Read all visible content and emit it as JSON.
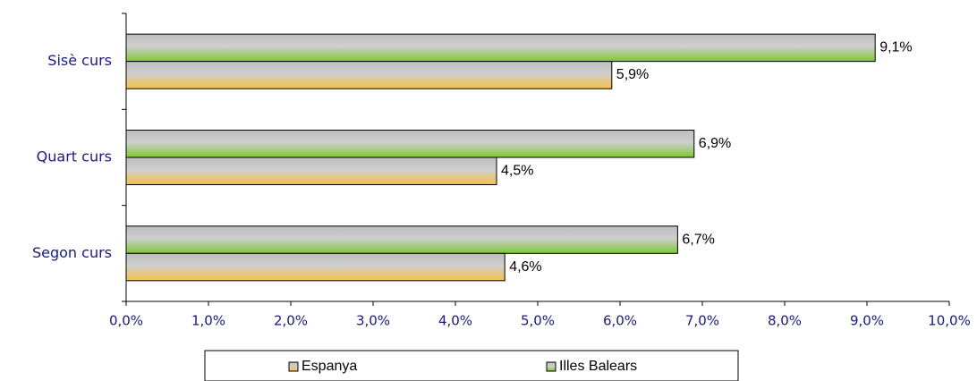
{
  "chart_data": {
    "type": "bar",
    "orientation": "horizontal",
    "categories": [
      "Sisè curs",
      "Quart curs",
      "Segon curs"
    ],
    "series": [
      {
        "name": "Espanya",
        "color": "#f5c242",
        "values": [
          5.9,
          4.5,
          4.6
        ],
        "value_labels": [
          "5,9%",
          "4,5%",
          "4,6%"
        ]
      },
      {
        "name": "Illes Balears",
        "color": "#7ec832",
        "values": [
          9.1,
          6.9,
          6.7
        ],
        "value_labels": [
          "9,1%",
          "6,9%",
          "6,7%"
        ]
      }
    ],
    "xlim": [
      0,
      10
    ],
    "xticks": [
      {
        "value": 0,
        "label": "0,0%"
      },
      {
        "value": 1,
        "label": "1,0%"
      },
      {
        "value": 2,
        "label": "2,0%"
      },
      {
        "value": 3,
        "label": "3,0%"
      },
      {
        "value": 4,
        "label": "4,0%"
      },
      {
        "value": 5,
        "label": "5,0%"
      },
      {
        "value": 6,
        "label": "6,0%"
      },
      {
        "value": 7,
        "label": "7,0%"
      },
      {
        "value": 8,
        "label": "8,0%"
      },
      {
        "value": 9,
        "label": "9,0%"
      },
      {
        "value": 10,
        "label": "10,0%"
      }
    ],
    "legend": "bottom"
  }
}
